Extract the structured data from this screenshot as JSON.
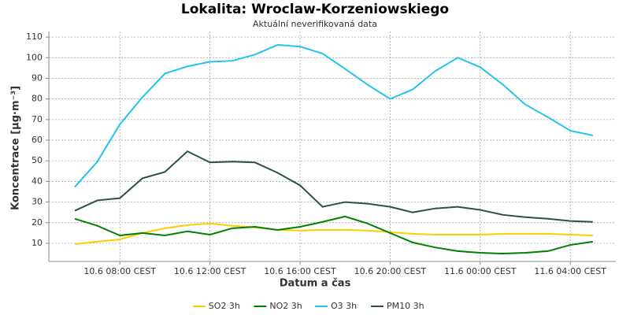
{
  "chart_data": {
    "type": "line",
    "title": "Lokalita: Wroclaw-Korzeniowskiego",
    "subtitle": "Aktuální neverifikovaná data",
    "x_label": "Datum a čas",
    "y_label": "Koncentrace [µg·m⁻³]",
    "categories": [
      null,
      null,
      "10.6 08:00 CEST",
      null,
      null,
      null,
      "10.6 12:00 CEST",
      null,
      null,
      null,
      "10.6 16:00 CEST",
      null,
      null,
      null,
      "10.6 20:00 CEST",
      null,
      null,
      null,
      "11.6 00:00 CEST",
      null,
      null,
      null,
      "11.6 04:00 CEST",
      null
    ],
    "ylim": [
      1.2,
      112.7
    ],
    "yticks": [
      10,
      20,
      30,
      40,
      50,
      60,
      70,
      80,
      90,
      100,
      110
    ],
    "grid": true,
    "legend": "bottom",
    "series": [
      {
        "name": "SO2 3h",
        "color": "#ffcc00",
        "values": [
          9.6,
          10.8,
          11.9,
          15,
          17.3,
          18.8,
          19.6,
          18.5,
          17.7,
          16.5,
          16.2,
          16.5,
          16.5,
          16.2,
          15.4,
          14.6,
          14.2,
          14.2,
          14.2,
          14.6,
          14.6,
          14.6,
          14.2,
          13.8
        ]
      },
      {
        "name": "NO2 3h",
        "color": "#008000",
        "values": [
          21.9,
          18.5,
          13.8,
          15,
          13.8,
          15.8,
          14.2,
          17.3,
          18,
          16.5,
          18,
          20.4,
          23,
          19.6,
          15,
          10.4,
          8,
          6.2,
          5.4,
          5,
          5.4,
          6.2,
          9.2,
          10.8
        ]
      },
      {
        "name": "O3 3h",
        "color": "#22c4ee",
        "values": [
          37.3,
          49.6,
          67.7,
          80.8,
          92.3,
          95.8,
          98,
          98.5,
          101.5,
          106.2,
          105.4,
          102,
          94.6,
          86.9,
          80,
          84.6,
          93.5,
          100,
          95.4,
          87,
          77.3,
          71.2,
          64.6,
          62.3
        ]
      },
      {
        "name": "PM10 3h",
        "color": "#2f4f4f",
        "values": [
          25.8,
          30.8,
          31.9,
          41.5,
          44.6,
          54.6,
          49.2,
          49.6,
          49.2,
          44.2,
          38.1,
          27.7,
          30,
          29.2,
          27.7,
          25,
          26.9,
          27.7,
          26.2,
          23.8,
          22.7,
          21.9,
          20.8,
          20.4
        ]
      }
    ]
  }
}
